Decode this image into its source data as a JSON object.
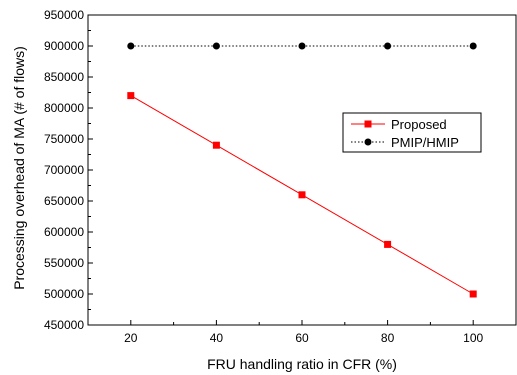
{
  "chart_data": {
    "type": "line",
    "title": "",
    "xlabel": "FRU handling ratio in CFR (%)",
    "ylabel": "Processing overhead of MA (# of flows)",
    "xlim": [
      10,
      110
    ],
    "ylim": [
      450000,
      950000
    ],
    "x_ticks": [
      20,
      40,
      60,
      80,
      100
    ],
    "y_ticks": [
      450000,
      500000,
      550000,
      600000,
      650000,
      700000,
      750000,
      800000,
      850000,
      900000,
      950000
    ],
    "x_tick_labels": [
      "20",
      "40",
      "60",
      "80",
      "100"
    ],
    "y_tick_labels": [
      "450000",
      "500000",
      "550000",
      "600000",
      "650000",
      "700000",
      "750000",
      "800000",
      "850000",
      "900000",
      "950000"
    ],
    "grid": false,
    "legend_position": "center-right",
    "series": [
      {
        "name": "Proposed",
        "color": "#ff0000",
        "marker": "square",
        "line_style": "solid",
        "x": [
          20,
          40,
          60,
          80,
          100
        ],
        "values": [
          820000,
          740000,
          660000,
          580000,
          500000
        ]
      },
      {
        "name": "PMIP/HMIP",
        "color": "#000000",
        "marker": "circle",
        "line_style": "dotted",
        "x": [
          20,
          40,
          60,
          80,
          100
        ],
        "values": [
          900000,
          900000,
          900000,
          900000,
          900000
        ]
      }
    ]
  }
}
